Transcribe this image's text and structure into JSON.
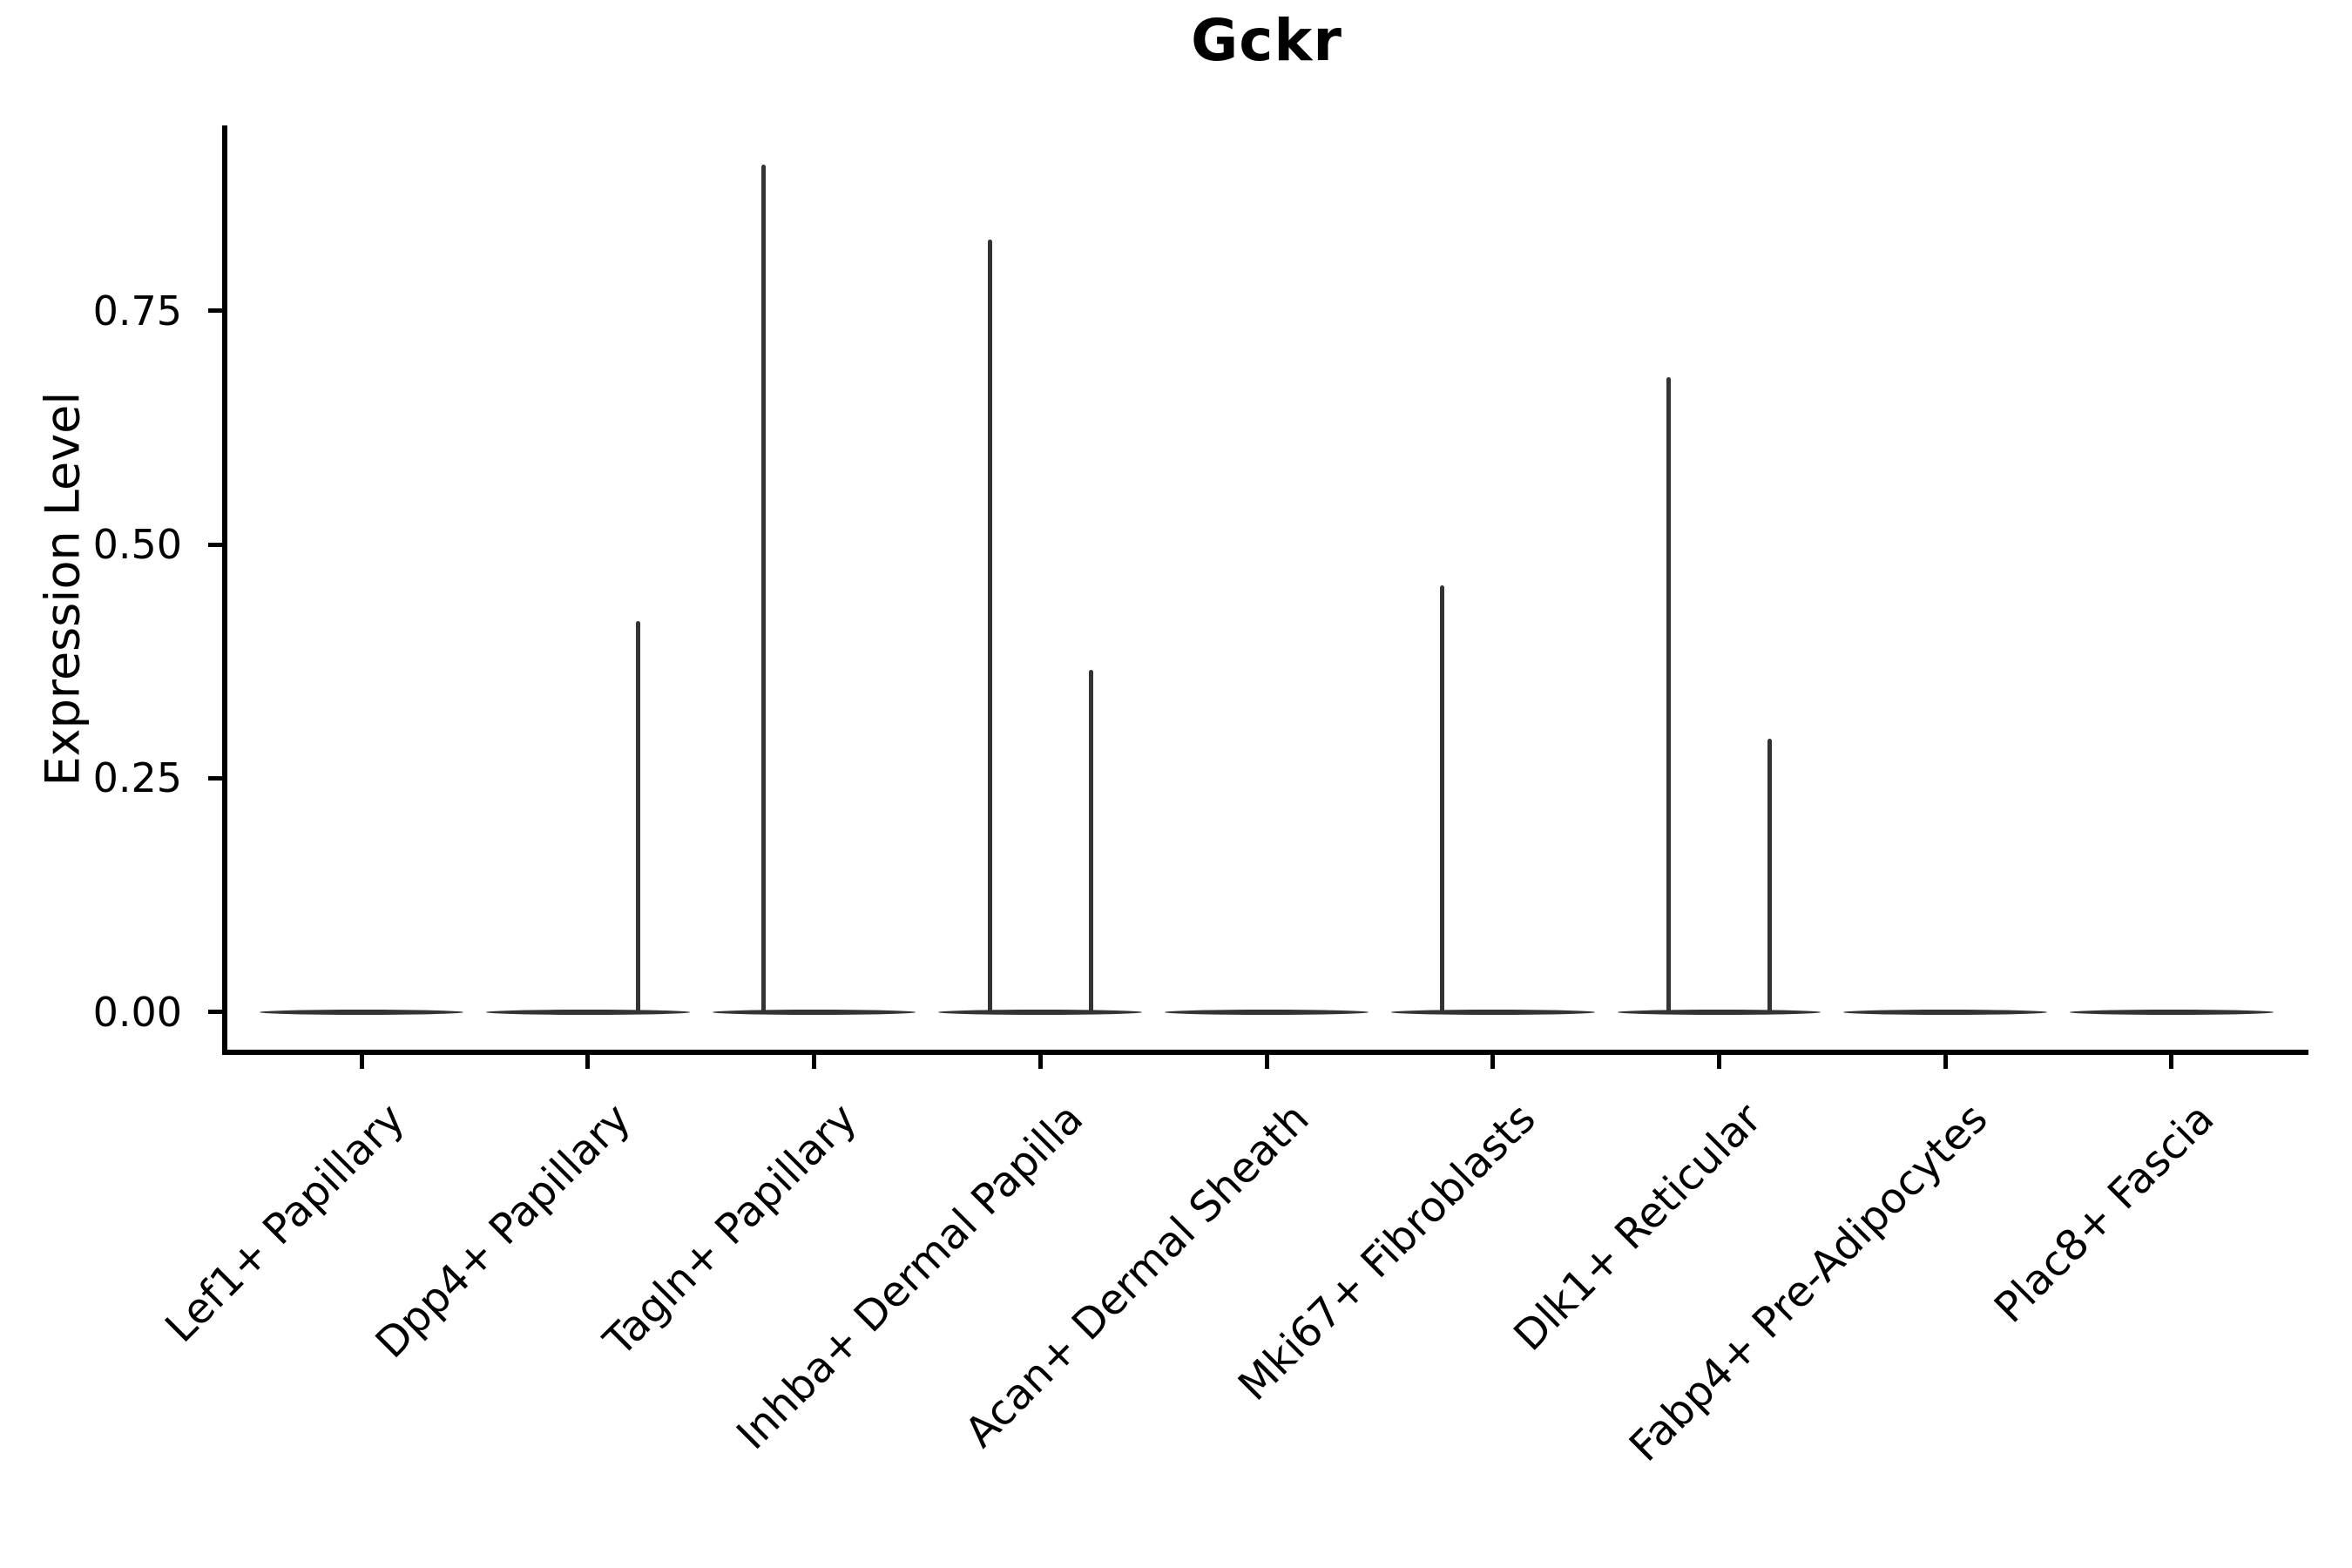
{
  "figure": {
    "background": "#ffffff"
  },
  "chart_data": {
    "type": "violin",
    "title": "Gckr",
    "xlabel": "",
    "ylabel": "Expression Level",
    "grid": false,
    "legend": null,
    "ylim": [
      -0.043,
      0.948
    ],
    "yticks": [
      {
        "value": 0.0,
        "label": "0.00"
      },
      {
        "value": 0.25,
        "label": "0.25"
      },
      {
        "value": 0.5,
        "label": "0.50"
      },
      {
        "value": 0.75,
        "label": "0.75"
      }
    ],
    "categories": [
      "Lef1+ Papillary",
      "Dpp4+ Papillary",
      "Tagln+ Papillary",
      "Inhba+ Dermal Papilla",
      "Acan+ Dermal Sheath",
      "Mki67+ Fibroblasts",
      "Dlk1+ Reticular",
      "Fabp4+ Pre-Adipocytes",
      "Plac8+ Fascia"
    ],
    "violins": [
      {
        "category": "Lef1+ Papillary",
        "baseline_value": 0.0,
        "spikes": []
      },
      {
        "category": "Dpp4+ Papillary",
        "baseline_value": 0.0,
        "spikes": [
          {
            "side": "right",
            "value": 0.418
          }
        ]
      },
      {
        "category": "Tagln+ Papillary",
        "baseline_value": 0.0,
        "spikes": [
          {
            "side": "left",
            "value": 0.906
          }
        ]
      },
      {
        "category": "Inhba+ Dermal Papilla",
        "baseline_value": 0.0,
        "spikes": [
          {
            "side": "left",
            "value": 0.826
          },
          {
            "side": "right",
            "value": 0.366
          }
        ]
      },
      {
        "category": "Acan+ Dermal Sheath",
        "baseline_value": 0.0,
        "spikes": []
      },
      {
        "category": "Mki67+ Fibroblasts",
        "baseline_value": 0.0,
        "spikes": [
          {
            "side": "left",
            "value": 0.456
          }
        ]
      },
      {
        "category": "Dlk1+ Reticular",
        "baseline_value": 0.0,
        "spikes": [
          {
            "side": "left",
            "value": 0.679
          },
          {
            "side": "right",
            "value": 0.292
          }
        ]
      },
      {
        "category": "Fabp4+ Pre-Adipocytes",
        "baseline_value": 0.0,
        "spikes": []
      },
      {
        "category": "Plac8+ Fascia",
        "baseline_value": 0.0,
        "spikes": []
      }
    ],
    "colors": {
      "violin": "#333333",
      "axis": "#000000",
      "text": "#000000",
      "background": "#ffffff"
    }
  }
}
